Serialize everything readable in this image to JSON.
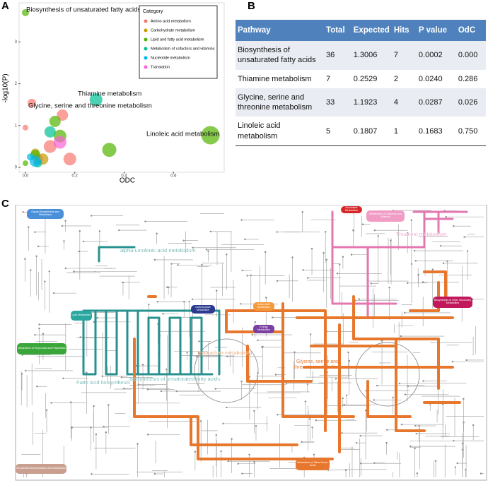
{
  "panels": [
    "A",
    "B",
    "C"
  ],
  "chart_data": {
    "type": "scatter",
    "x_label": "ODC",
    "y_label": "-log10(P)",
    "xlim": [
      -0.02,
      0.8
    ],
    "ylim": [
      -0.1,
      3.9
    ],
    "xticks": [
      {
        "value": 0,
        "label": "0.0"
      },
      {
        "value": 0.2,
        "label": "0.2"
      },
      {
        "value": 0.4,
        "label": "0.4"
      },
      {
        "value": 0.6,
        "label": "0.6"
      }
    ],
    "yticks": [
      0,
      1,
      2,
      3
    ],
    "legend_title": "Category",
    "legend": "top-right",
    "annotations": [
      "Biosynthesis of unsaturated fatty acids",
      "Thiamine metabolism",
      "Glycine, serine and threonine metabolism",
      "Linoleic acid metabolism"
    ],
    "series": [
      {
        "name": "Amino acid metabolism",
        "color": "#f8766d",
        "x": [
          0.026,
          0.15,
          0.1,
          0.18,
          0.0,
          0.05
        ],
        "values": [
          1.54,
          1.25,
          0.5,
          0.2,
          0.95,
          0.2
        ],
        "sizes": [
          6,
          8,
          9,
          9,
          4,
          7
        ]
      },
      {
        "name": "Carbohydrate metabolism",
        "color": "#c49a00",
        "x": [
          0.07,
          0.04
        ],
        "values": [
          0.2,
          0.35
        ],
        "sizes": [
          8,
          6
        ]
      },
      {
        "name": "Lipid and fatty acid metabolism",
        "color": "#53b400",
        "x": [
          0.0,
          0.75,
          0.34,
          0.14,
          0.12,
          0.04,
          0.0
        ],
        "values": [
          3.7,
          0.77,
          0.42,
          0.75,
          1.1,
          0.3,
          0.1
        ],
        "sizes": [
          5,
          13,
          10,
          9,
          8,
          7,
          4
        ]
      },
      {
        "name": "Metabolism of cofactors and vitamins",
        "color": "#00c094",
        "x": [
          0.286,
          0.1,
          0.05
        ],
        "values": [
          1.62,
          0.85,
          0.1
        ],
        "sizes": [
          9,
          8,
          6
        ]
      },
      {
        "name": "Nucleotide metabolism",
        "color": "#00b6eb",
        "x": [
          0.04,
          0.02
        ],
        "values": [
          0.15,
          0.25
        ],
        "sizes": [
          8,
          5
        ]
      },
      {
        "name": "Translation",
        "color": "#fb61d7",
        "x": [
          0.14
        ],
        "values": [
          0.6
        ],
        "sizes": [
          9
        ]
      }
    ]
  },
  "table": {
    "header": [
      "Pathway",
      "Total",
      "Expected",
      "Hits",
      "P value",
      "OdC"
    ],
    "rows": [
      [
        "Biosynthesis of unsaturated fatty acids",
        "36",
        "1.3006",
        "7",
        "0.0002",
        "0.000"
      ],
      [
        "Thiamine metabolism",
        "7",
        "0.2529",
        "2",
        "0.0240",
        "0.286"
      ],
      [
        "Glycine, serine and threonine metabolism",
        "33",
        "1.1923",
        "4",
        "0.0287",
        "0.026"
      ],
      [
        "Linoleic acid metabolism",
        "5",
        "0.1807",
        "1",
        "0.1683",
        "0.750"
      ]
    ]
  },
  "map": {
    "modules": [
      {
        "label": "Glycan Biosynthesis and Metabolism",
        "color": "#4a90d9"
      },
      {
        "label": "Nucleotide Metabolism",
        "color": "#d62728"
      },
      {
        "label": "Metabolism of Cofactors and Vitamins",
        "color": "#f09cc4"
      },
      {
        "label": "Carbohydrate Metabolism",
        "color": "#2b3a8f"
      },
      {
        "label": "Amino Acid Metabolism",
        "color": "#f39a3c"
      },
      {
        "label": "Energy Metabolism",
        "color": "#7a3fa0"
      },
      {
        "label": "Biosynthesis of Other Secondary Metabolites",
        "color": "#c2185b"
      },
      {
        "label": "Lipid Metabolism",
        "color": "#2aa7a0"
      },
      {
        "label": "Metabolism of Terpenoids and Polyketides",
        "color": "#3aa63a"
      },
      {
        "label": "Metabolism of Other Amino Acids",
        "color": "#e8772e"
      },
      {
        "label": "Xenobiotics Biodegradation and Metabolism",
        "color": "#c9a090"
      }
    ],
    "pathways": [
      {
        "label": "Thiamine metabolism",
        "color": "#e377b0"
      },
      {
        "label": "alpha-Linolenic acid metabolism",
        "color": "#27918f"
      },
      {
        "label": "Tryptophan metabolism",
        "color": "#e8772e"
      },
      {
        "label": "Glycine, serine and threonine metabolism",
        "color": "#e8772e"
      },
      {
        "label": "Fatty acid biosynthesis",
        "color": "#27918f"
      },
      {
        "label": "Biosynthesis of unsaturated fatty acids",
        "color": "#27918f"
      }
    ]
  }
}
